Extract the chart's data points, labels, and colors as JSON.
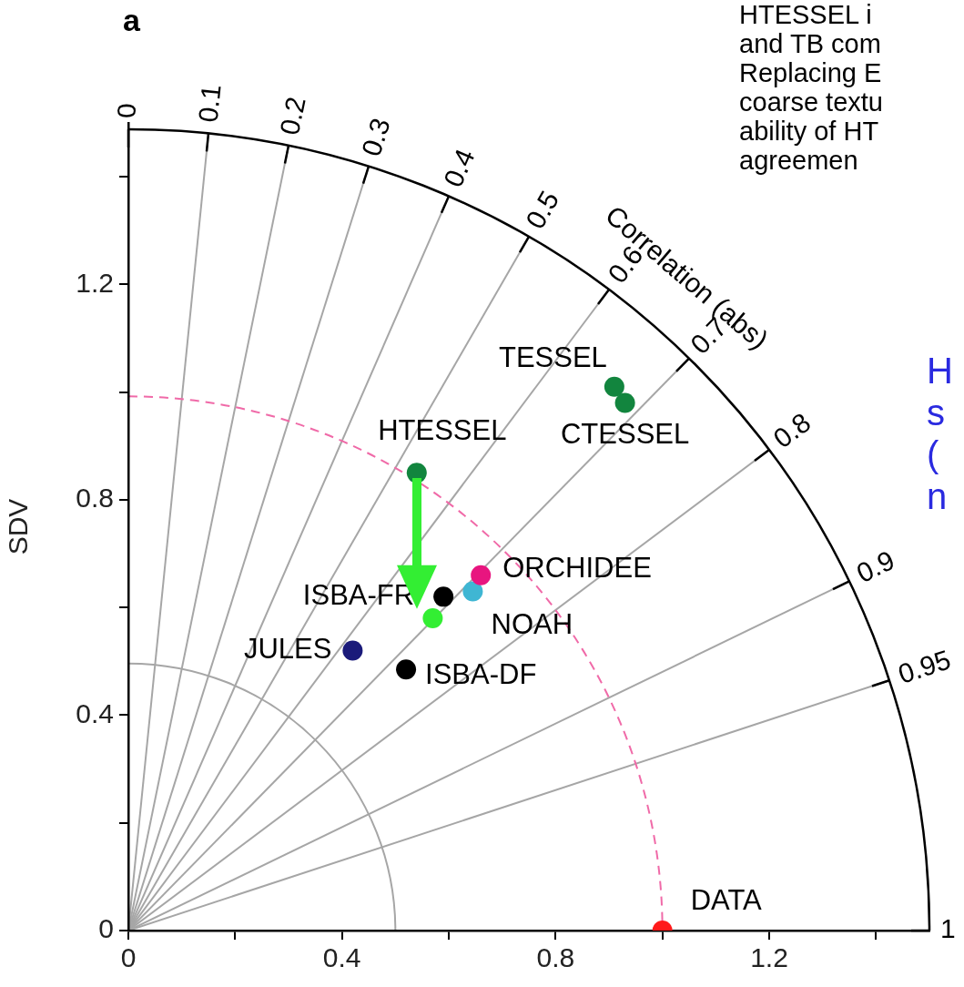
{
  "chart_data": {
    "type": "scatter",
    "title": "a",
    "ylabel": "SDV",
    "xlim": [
      0,
      1.5
    ],
    "ylim": [
      0,
      1.5
    ],
    "xticks": [
      0,
      {
        "value": 0.2,
        "label": null
      },
      0.4,
      {
        "value": 0.6,
        "label": null
      },
      0.8,
      {
        "value": 1.0,
        "label": null
      },
      1.2,
      {
        "value": 1.4,
        "label": null
      }
    ],
    "yticks": [
      0,
      {
        "value": 0.2,
        "label": null
      },
      0.4,
      {
        "value": 0.6,
        "label": null
      },
      0.8,
      {
        "value": 1.0,
        "label": null
      },
      1.2,
      {
        "value": 1.4,
        "label": null
      }
    ],
    "marker": "circle",
    "series": [
      {
        "name": "TESSEL",
        "color": "#12853e",
        "x": [
          0.91
        ],
        "values": [
          1.01
        ]
      },
      {
        "name": "CTESSEL",
        "color": "#12853e",
        "x": [
          0.93
        ],
        "values": [
          0.98
        ]
      },
      {
        "name": "HTESSEL",
        "color": "#12853e",
        "x": [
          0.54
        ],
        "values": [
          0.85
        ]
      },
      {
        "name": "ORCHIDEE",
        "color": "#e8157f",
        "x": [
          0.66
        ],
        "values": [
          0.66
        ]
      },
      {
        "name": "NOAH",
        "color": "#3fb6d3",
        "x": [
          0.645
        ],
        "values": [
          0.63
        ]
      },
      {
        "name": "ISBA-FR",
        "color": "#000000",
        "x": [
          0.59
        ],
        "values": [
          0.62
        ]
      },
      {
        "color": "#33ee33",
        "x": [
          0.57
        ],
        "values": [
          0.58
        ]
      },
      {
        "name": "JULES",
        "color": "#1a1a7a",
        "x": [
          0.42
        ],
        "values": [
          0.52
        ]
      },
      {
        "name": "ISBA-DF",
        "color": "#000000",
        "x": [
          0.52
        ],
        "values": [
          0.485
        ]
      },
      {
        "name": "DATA",
        "color": "#ff1a1a",
        "x": [
          1.0
        ],
        "values": [
          0.0
        ]
      }
    ],
    "annotations": [
      "0",
      "0.1",
      "0.2",
      "0.3",
      "0.4",
      "0.5",
      "0.6",
      "0.7",
      "0.8",
      "0.9",
      "0.95",
      "1",
      "Correlation (abs)",
      "HTESSEL i",
      "and TB com",
      "Replacing E",
      "coarse textu",
      "ability of HT",
      "agreemen",
      "H",
      "s",
      "(",
      "n"
    ]
  }
}
